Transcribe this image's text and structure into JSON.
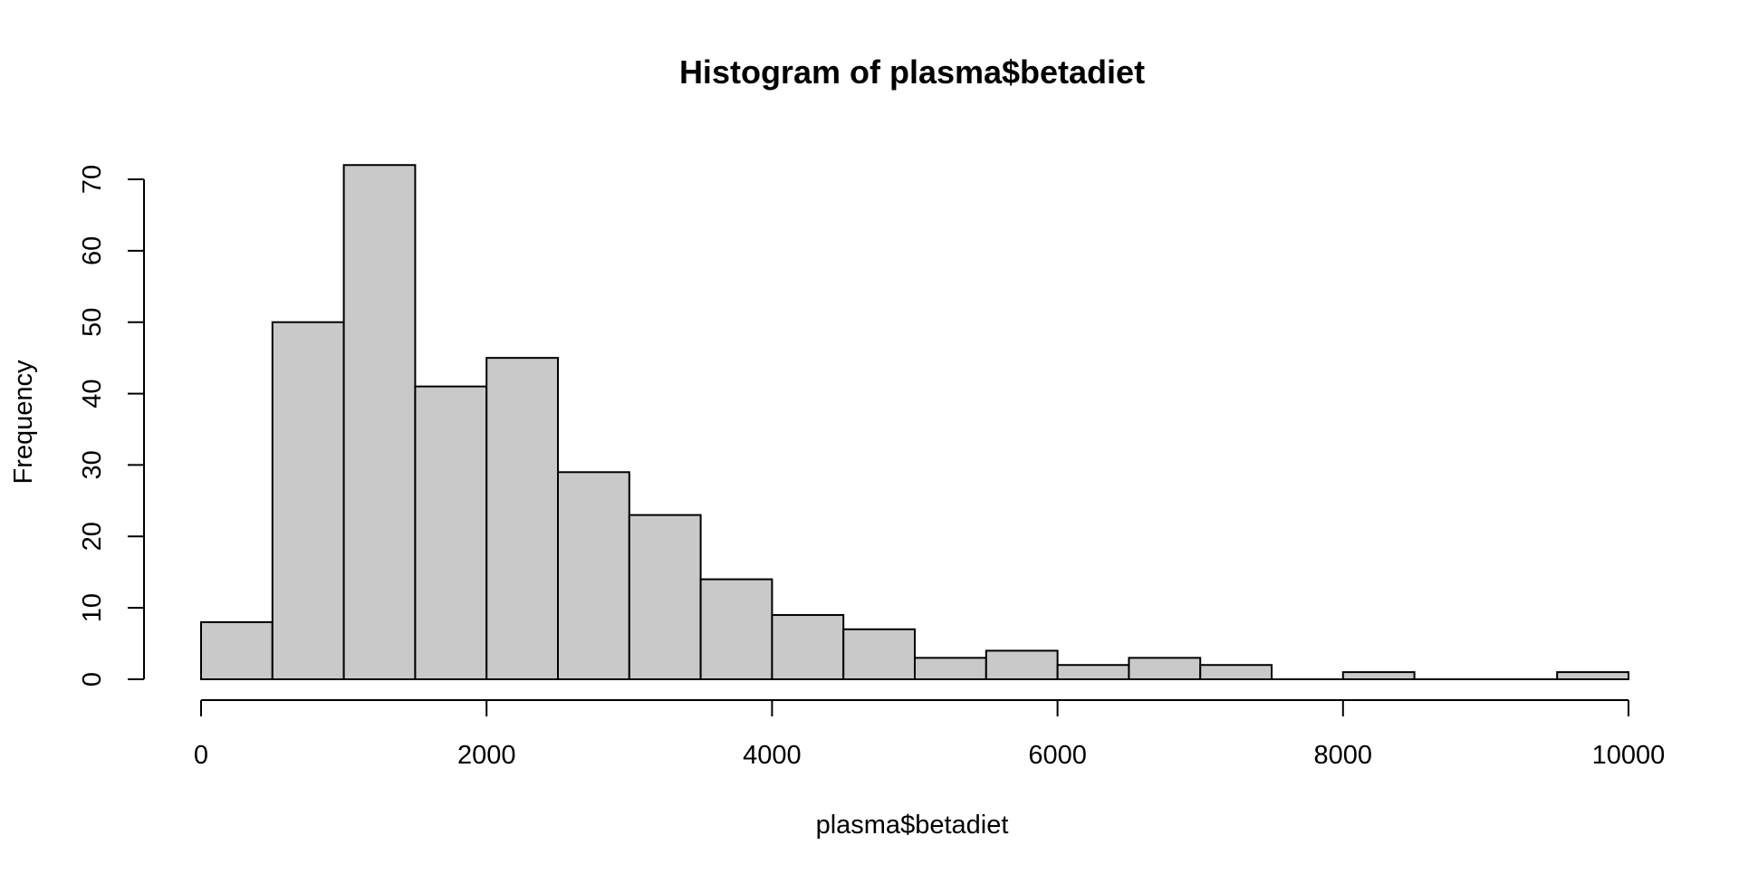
{
  "chart_data": {
    "type": "bar",
    "title": "Histogram of plasma$betadiet",
    "xlabel": "plasma$betadiet",
    "ylabel": "Frequency",
    "bin_edges": [
      0,
      500,
      1000,
      1500,
      2000,
      2500,
      3000,
      3500,
      4000,
      4500,
      5000,
      5500,
      6000,
      6500,
      7000,
      7500,
      8000,
      8500,
      9000,
      9500,
      10000
    ],
    "values": [
      8,
      50,
      72,
      41,
      45,
      29,
      23,
      14,
      9,
      7,
      3,
      4,
      2,
      3,
      2,
      0,
      1,
      0,
      0,
      1
    ],
    "xlim": [
      0,
      10000
    ],
    "ylim": [
      0,
      72
    ],
    "x_ticks": [
      0,
      2000,
      4000,
      6000,
      8000,
      10000
    ],
    "y_ticks": [
      0,
      10,
      20,
      30,
      40,
      50,
      60,
      70
    ],
    "x_tick_labels": [
      "0",
      "2000",
      "4000",
      "6000",
      "8000",
      "10000"
    ],
    "y_tick_labels": [
      "0",
      "10",
      "20",
      "30",
      "40",
      "50",
      "60",
      "70"
    ],
    "grid": false,
    "legend": "none",
    "colors": {
      "bar_fill": "#c9c9c9",
      "bar_stroke": "#000000",
      "axis": "#000000",
      "background": "#ffffff"
    }
  }
}
